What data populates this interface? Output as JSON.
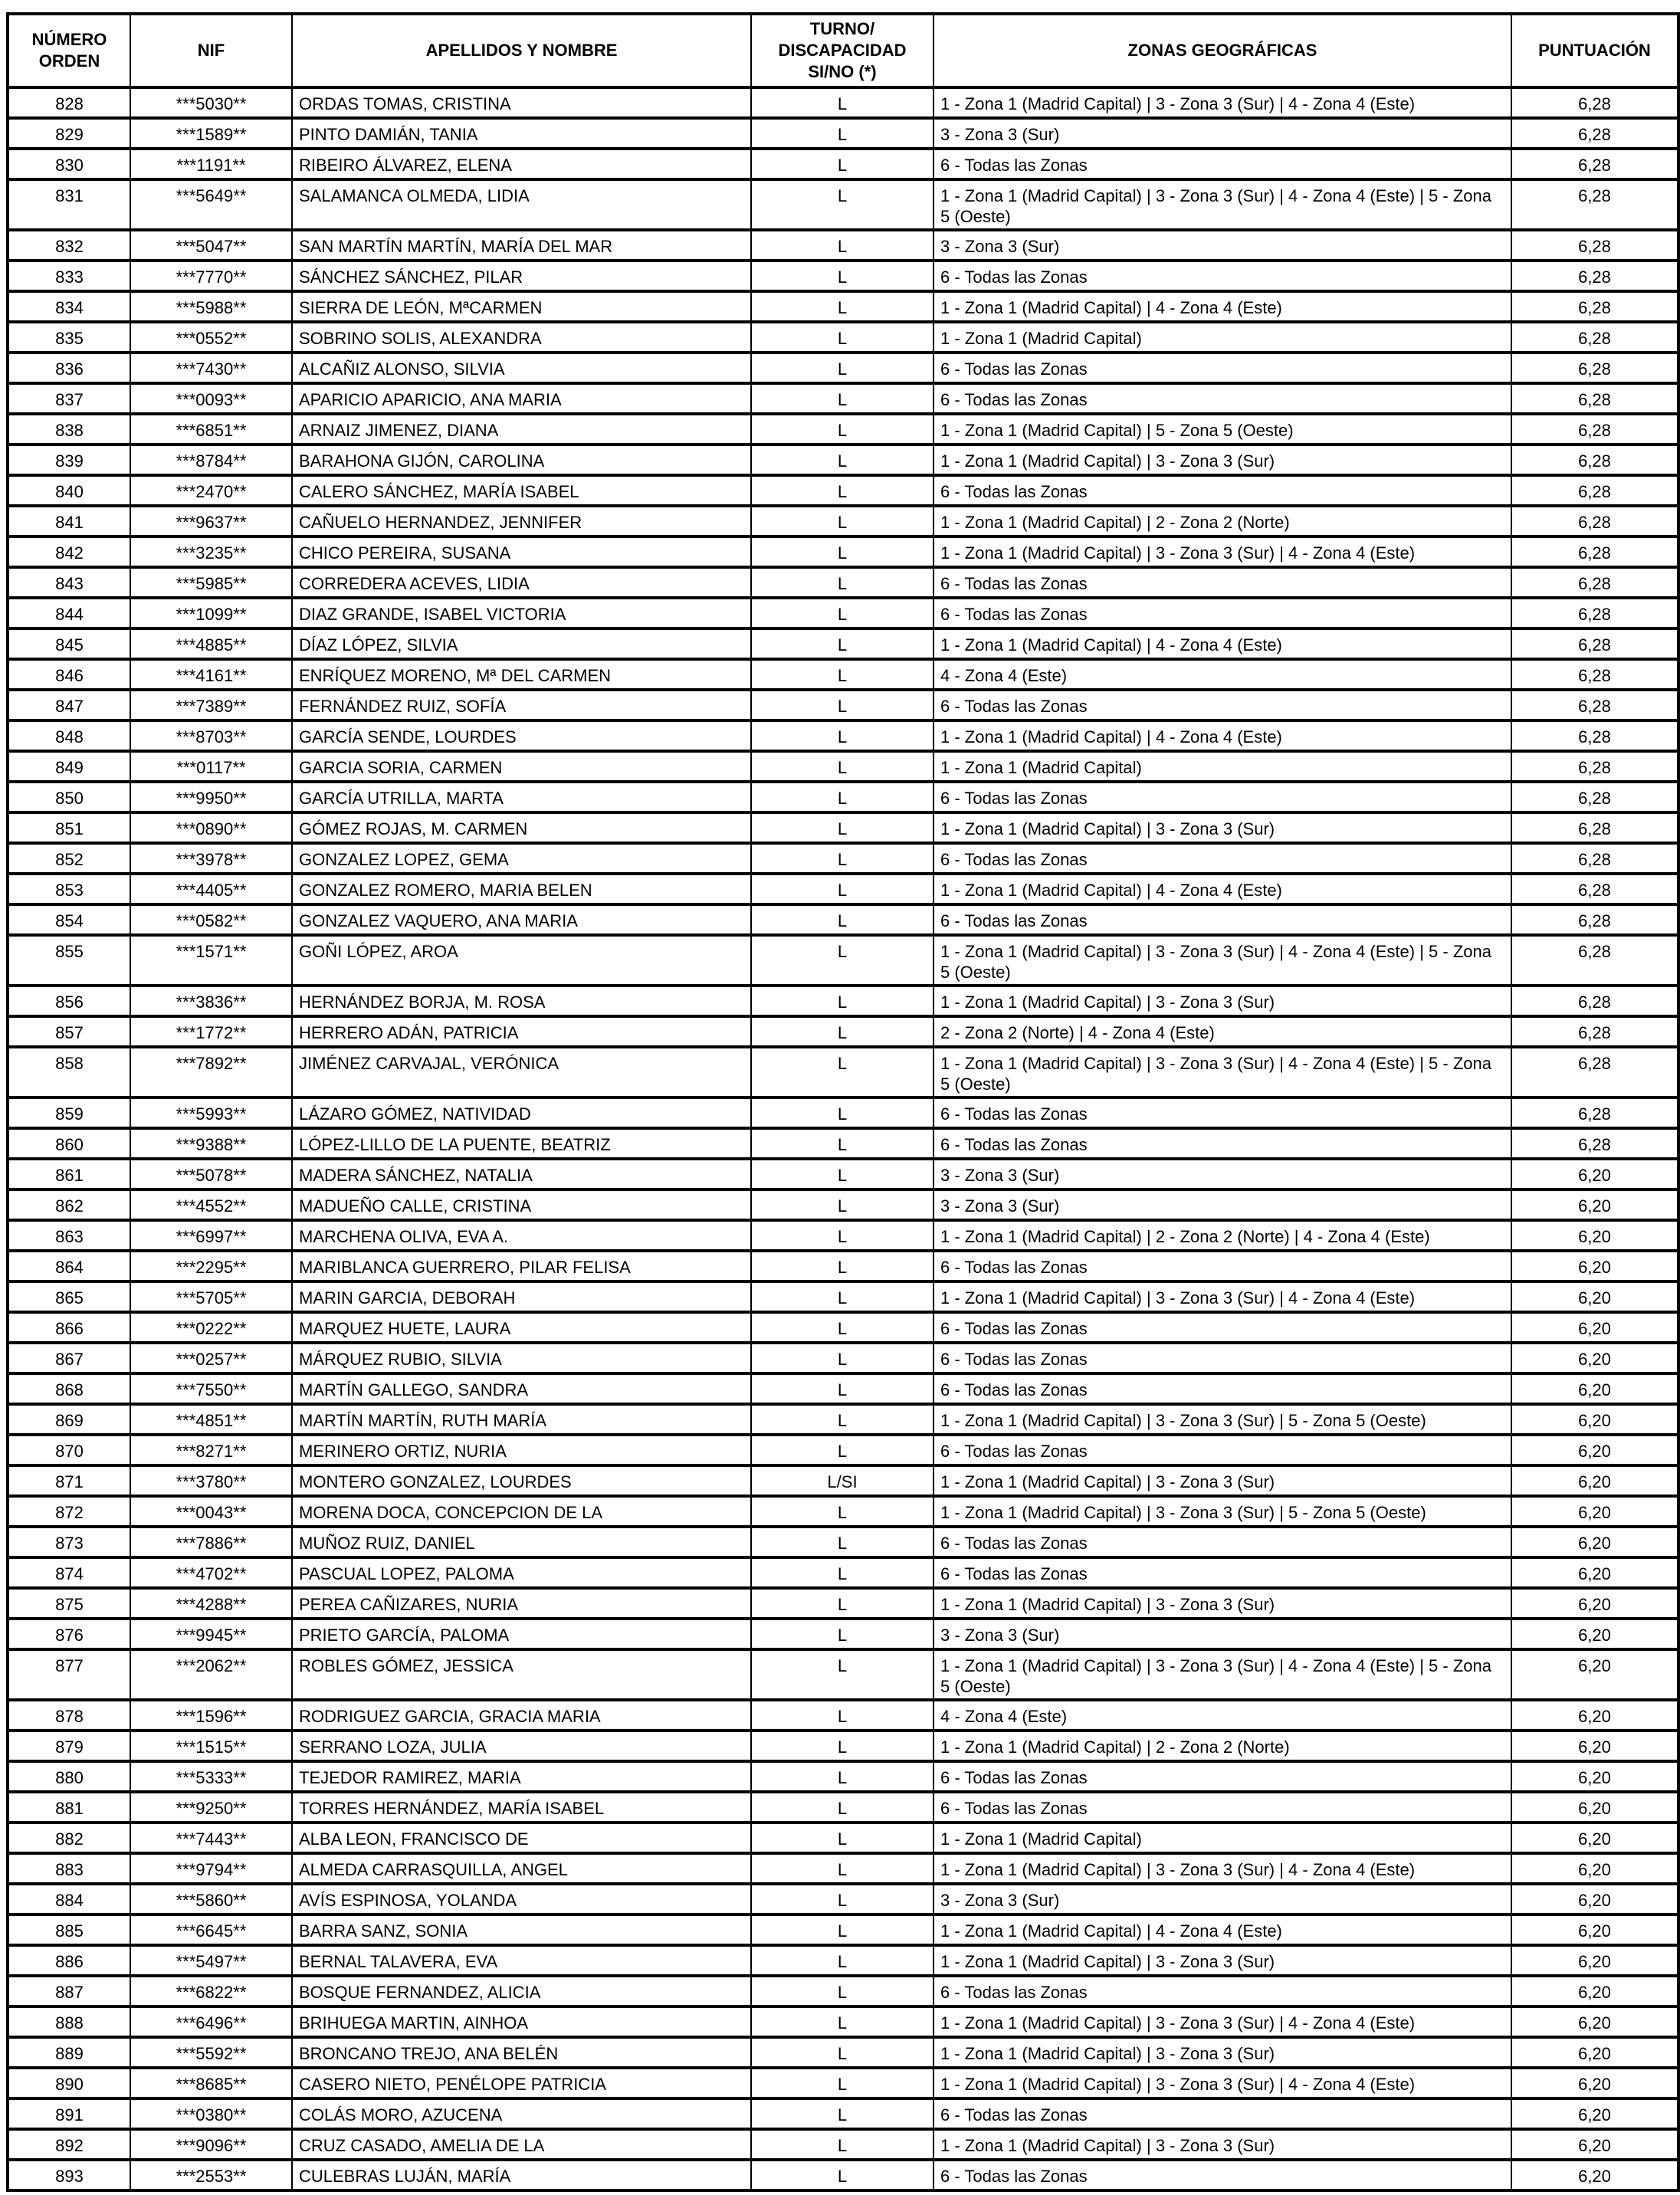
{
  "headers": {
    "orden": "NÚMERO ORDEN",
    "nif": "NIF",
    "nombre": "APELLIDOS Y NOMBRE",
    "turno": "TURNO/ DISCAPACIDAD SI/NO (*)",
    "zonas": "ZONAS GEOGRÁFICAS",
    "puntuacion": "PUNTUACIÓN"
  },
  "rows": [
    [
      "828",
      "***5030**",
      "ORDAS TOMAS, CRISTINA",
      "L",
      "1 - Zona 1 (Madrid Capital) | 3 - Zona 3 (Sur) | 4 - Zona 4 (Este)",
      "6,28"
    ],
    [
      "829",
      "***1589**",
      "PINTO DAMIÁN, TANIA",
      "L",
      "3 - Zona 3 (Sur)",
      "6,28"
    ],
    [
      "830",
      "***1191**",
      "RIBEIRO ÁLVAREZ, ELENA",
      "L",
      "6 - Todas las Zonas",
      "6,28"
    ],
    [
      "831",
      "***5649**",
      "SALAMANCA OLMEDA, LIDIA",
      "L",
      "1 - Zona 1 (Madrid Capital) | 3 - Zona 3 (Sur) | 4 - Zona 4 (Este) | 5 - Zona 5 (Oeste)",
      "6,28"
    ],
    [
      "832",
      "***5047**",
      "SAN MARTÍN MARTÍN, MARÍA DEL MAR",
      "L",
      "3 - Zona 3 (Sur)",
      "6,28"
    ],
    [
      "833",
      "***7770**",
      "SÁNCHEZ SÁNCHEZ, PILAR",
      "L",
      "6 - Todas las Zonas",
      "6,28"
    ],
    [
      "834",
      "***5988**",
      "SIERRA DE LEÓN, MªCARMEN",
      "L",
      "1 - Zona 1 (Madrid Capital) | 4 - Zona 4 (Este)",
      "6,28"
    ],
    [
      "835",
      "***0552**",
      "SOBRINO SOLIS, ALEXANDRA",
      "L",
      "1 - Zona 1 (Madrid Capital)",
      "6,28"
    ],
    [
      "836",
      "***7430**",
      "ALCAÑIZ ALONSO, SILVIA",
      "L",
      "6 - Todas las Zonas",
      "6,28"
    ],
    [
      "837",
      "***0093**",
      "APARICIO APARICIO, ANA MARIA",
      "L",
      "6 - Todas las Zonas",
      "6,28"
    ],
    [
      "838",
      "***6851**",
      "ARNAIZ JIMENEZ, DIANA",
      "L",
      "1 - Zona 1 (Madrid Capital) | 5 - Zona 5 (Oeste)",
      "6,28"
    ],
    [
      "839",
      "***8784**",
      "BARAHONA GIJÓN, CAROLINA",
      "L",
      "1 - Zona 1 (Madrid Capital) | 3 - Zona 3 (Sur)",
      "6,28"
    ],
    [
      "840",
      "***2470**",
      "CALERO SÁNCHEZ, MARÍA ISABEL",
      "L",
      "6 - Todas las Zonas",
      "6,28"
    ],
    [
      "841",
      "***9637**",
      "CAÑUELO HERNANDEZ, JENNIFER",
      "L",
      "1 - Zona 1 (Madrid Capital) | 2 - Zona 2 (Norte)",
      "6,28"
    ],
    [
      "842",
      "***3235**",
      "CHICO PEREIRA, SUSANA",
      "L",
      "1 - Zona 1 (Madrid Capital) | 3 - Zona 3 (Sur) | 4 - Zona 4 (Este)",
      "6,28"
    ],
    [
      "843",
      "***5985**",
      "CORREDERA ACEVES, LIDIA",
      "L",
      "6 - Todas las Zonas",
      "6,28"
    ],
    [
      "844",
      "***1099**",
      "DIAZ GRANDE, ISABEL VICTORIA",
      "L",
      "6 - Todas las Zonas",
      "6,28"
    ],
    [
      "845",
      "***4885**",
      "DÍAZ LÓPEZ, SILVIA",
      "L",
      "1 - Zona 1 (Madrid Capital) | 4 - Zona 4 (Este)",
      "6,28"
    ],
    [
      "846",
      "***4161**",
      "ENRÍQUEZ MORENO, Mª DEL CARMEN",
      "L",
      "4 - Zona 4 (Este)",
      "6,28"
    ],
    [
      "847",
      "***7389**",
      "FERNÁNDEZ RUIZ, SOFÍA",
      "L",
      "6 - Todas las Zonas",
      "6,28"
    ],
    [
      "848",
      "***8703**",
      "GARCÍA SENDE, LOURDES",
      "L",
      "1 - Zona 1 (Madrid Capital) | 4 - Zona 4 (Este)",
      "6,28"
    ],
    [
      "849",
      "***0117**",
      "GARCIA SORIA, CARMEN",
      "L",
      "1 - Zona 1 (Madrid Capital)",
      "6,28"
    ],
    [
      "850",
      "***9950**",
      "GARCÍA UTRILLA, MARTA",
      "L",
      "6 - Todas las Zonas",
      "6,28"
    ],
    [
      "851",
      "***0890**",
      "GÓMEZ ROJAS, M. CARMEN",
      "L",
      "1 - Zona 1 (Madrid Capital) | 3 - Zona 3 (Sur)",
      "6,28"
    ],
    [
      "852",
      "***3978**",
      "GONZALEZ LOPEZ, GEMA",
      "L",
      "6 - Todas las Zonas",
      "6,28"
    ],
    [
      "853",
      "***4405**",
      "GONZALEZ ROMERO, MARIA BELEN",
      "L",
      "1 - Zona 1 (Madrid Capital) | 4 - Zona 4 (Este)",
      "6,28"
    ],
    [
      "854",
      "***0582**",
      "GONZALEZ VAQUERO, ANA MARIA",
      "L",
      "6 - Todas las Zonas",
      "6,28"
    ],
    [
      "855",
      "***1571**",
      "GOÑI LÓPEZ, AROA",
      "L",
      "1 - Zona 1 (Madrid Capital) | 3 - Zona 3 (Sur) | 4 - Zona 4 (Este) | 5 - Zona 5 (Oeste)",
      "6,28"
    ],
    [
      "856",
      "***3836**",
      "HERNÁNDEZ BORJA, M. ROSA",
      "L",
      "1 - Zona 1 (Madrid Capital) | 3 - Zona 3 (Sur)",
      "6,28"
    ],
    [
      "857",
      "***1772**",
      "HERRERO ADÁN, PATRICIA",
      "L",
      "2 - Zona 2 (Norte) | 4 - Zona 4 (Este)",
      "6,28"
    ],
    [
      "858",
      "***7892**",
      "JIMÉNEZ CARVAJAL, VERÓNICA",
      "L",
      "1 - Zona 1 (Madrid Capital) | 3 - Zona 3 (Sur) | 4 - Zona 4 (Este) | 5 - Zona 5 (Oeste)",
      "6,28"
    ],
    [
      "859",
      "***5993**",
      "LÁZARO GÓMEZ, NATIVIDAD",
      "L",
      "6 - Todas las Zonas",
      "6,28"
    ],
    [
      "860",
      "***9388**",
      "LÓPEZ-LILLO DE LA PUENTE, BEATRIZ",
      "L",
      "6 - Todas las Zonas",
      "6,28"
    ],
    [
      "861",
      "***5078**",
      "MADERA SÁNCHEZ, NATALIA",
      "L",
      "3 - Zona 3 (Sur)",
      "6,20"
    ],
    [
      "862",
      "***4552**",
      "MADUEÑO CALLE, CRISTINA",
      "L",
      "3 - Zona 3 (Sur)",
      "6,20"
    ],
    [
      "863",
      "***6997**",
      "MARCHENA OLIVA, EVA A.",
      "L",
      "1 - Zona 1 (Madrid Capital) | 2 - Zona 2 (Norte) | 4 - Zona 4 (Este)",
      "6,20"
    ],
    [
      "864",
      "***2295**",
      "MARIBLANCA GUERRERO, PILAR FELISA",
      "L",
      "6 - Todas las Zonas",
      "6,20"
    ],
    [
      "865",
      "***5705**",
      "MARIN GARCIA, DEBORAH",
      "L",
      "1 - Zona 1 (Madrid Capital) | 3 - Zona 3 (Sur) | 4 - Zona 4 (Este)",
      "6,20"
    ],
    [
      "866",
      "***0222**",
      "MARQUEZ HUETE, LAURA",
      "L",
      "6 - Todas las Zonas",
      "6,20"
    ],
    [
      "867",
      "***0257**",
      "MÁRQUEZ RUBIO, SILVIA",
      "L",
      "6 - Todas las Zonas",
      "6,20"
    ],
    [
      "868",
      "***7550**",
      "MARTÍN GALLEGO, SANDRA",
      "L",
      "6 - Todas las Zonas",
      "6,20"
    ],
    [
      "869",
      "***4851**",
      "MARTÍN MARTÍN, RUTH MARÍA",
      "L",
      "1 - Zona 1 (Madrid Capital) | 3 - Zona 3 (Sur) | 5 - Zona 5 (Oeste)",
      "6,20"
    ],
    [
      "870",
      "***8271**",
      "MERINERO ORTIZ, NURIA",
      "L",
      "6 - Todas las Zonas",
      "6,20"
    ],
    [
      "871",
      "***3780**",
      "MONTERO GONZALEZ, LOURDES",
      "L/SI",
      "1 - Zona 1 (Madrid Capital) | 3 - Zona 3 (Sur)",
      "6,20"
    ],
    [
      "872",
      "***0043**",
      "MORENA DOCA, CONCEPCION DE LA",
      "L",
      "1 - Zona 1 (Madrid Capital) | 3 - Zona 3 (Sur) | 5 - Zona 5 (Oeste)",
      "6,20"
    ],
    [
      "873",
      "***7886**",
      "MUÑOZ RUIZ, DANIEL",
      "L",
      "6 - Todas las Zonas",
      "6,20"
    ],
    [
      "874",
      "***4702**",
      "PASCUAL LOPEZ, PALOMA",
      "L",
      "6 - Todas las Zonas",
      "6,20"
    ],
    [
      "875",
      "***4288**",
      "PEREA CAÑIZARES, NURIA",
      "L",
      "1 - Zona 1 (Madrid Capital) | 3 - Zona 3 (Sur)",
      "6,20"
    ],
    [
      "876",
      "***9945**",
      "PRIETO GARCÍA, PALOMA",
      "L",
      "3 - Zona 3 (Sur)",
      "6,20"
    ],
    [
      "877",
      "***2062**",
      "ROBLES GÓMEZ, JESSICA",
      "L",
      "1 - Zona 1 (Madrid Capital) | 3 - Zona 3 (Sur) | 4 - Zona 4 (Este) | 5 - Zona 5 (Oeste)",
      "6,20"
    ],
    [
      "878",
      "***1596**",
      "RODRIGUEZ GARCIA, GRACIA MARIA",
      "L",
      "4 - Zona 4 (Este)",
      "6,20"
    ],
    [
      "879",
      "***1515**",
      "SERRANO LOZA, JULIA",
      "L",
      "1 - Zona 1 (Madrid Capital) | 2 - Zona 2 (Norte)",
      "6,20"
    ],
    [
      "880",
      "***5333**",
      "TEJEDOR RAMIREZ, MARIA",
      "L",
      "6 - Todas las Zonas",
      "6,20"
    ],
    [
      "881",
      "***9250**",
      "TORRES HERNÁNDEZ, MARÍA ISABEL",
      "L",
      "6 - Todas las Zonas",
      "6,20"
    ],
    [
      "882",
      "***7443**",
      "ALBA LEON, FRANCISCO DE",
      "L",
      "1 - Zona 1 (Madrid Capital)",
      "6,20"
    ],
    [
      "883",
      "***9794**",
      "ALMEDA CARRASQUILLA, ANGEL",
      "L",
      "1 - Zona 1 (Madrid Capital) | 3 - Zona 3 (Sur) | 4 - Zona 4 (Este)",
      "6,20"
    ],
    [
      "884",
      "***5860**",
      "AVÍS ESPINOSA, YOLANDA",
      "L",
      "3 - Zona 3 (Sur)",
      "6,20"
    ],
    [
      "885",
      "***6645**",
      "BARRA SANZ, SONIA",
      "L",
      "1 - Zona 1 (Madrid Capital) | 4 - Zona 4 (Este)",
      "6,20"
    ],
    [
      "886",
      "***5497**",
      "BERNAL TALAVERA, EVA",
      "L",
      "1 - Zona 1 (Madrid Capital) | 3 - Zona 3 (Sur)",
      "6,20"
    ],
    [
      "887",
      "***6822**",
      "BOSQUE FERNANDEZ, ALICIA",
      "L",
      "6 - Todas las Zonas",
      "6,20"
    ],
    [
      "888",
      "***6496**",
      "BRIHUEGA MARTIN, AINHOA",
      "L",
      "1 - Zona 1 (Madrid Capital) | 3 - Zona 3 (Sur) | 4 - Zona 4 (Este)",
      "6,20"
    ],
    [
      "889",
      "***5592**",
      "BRONCANO TREJO, ANA BELÉN",
      "L",
      "1 - Zona 1 (Madrid Capital) | 3 - Zona 3 (Sur)",
      "6,20"
    ],
    [
      "890",
      "***8685**",
      "CASERO NIETO, PENÉLOPE PATRICIA",
      "L",
      "1 - Zona 1 (Madrid Capital) | 3 - Zona 3 (Sur) | 4 - Zona 4 (Este)",
      "6,20"
    ],
    [
      "891",
      "***0380**",
      "COLÁS MORO, AZUCENA",
      "L",
      "6 - Todas las Zonas",
      "6,20"
    ],
    [
      "892",
      "***9096**",
      "CRUZ CASADO, AMELIA DE LA",
      "L",
      "1 - Zona 1 (Madrid Capital) | 3 - Zona 3 (Sur)",
      "6,20"
    ],
    [
      "893",
      "***2553**",
      "CULEBRAS LUJÁN, MARÍA",
      "L",
      "6 - Todas las Zonas",
      "6,20"
    ]
  ]
}
